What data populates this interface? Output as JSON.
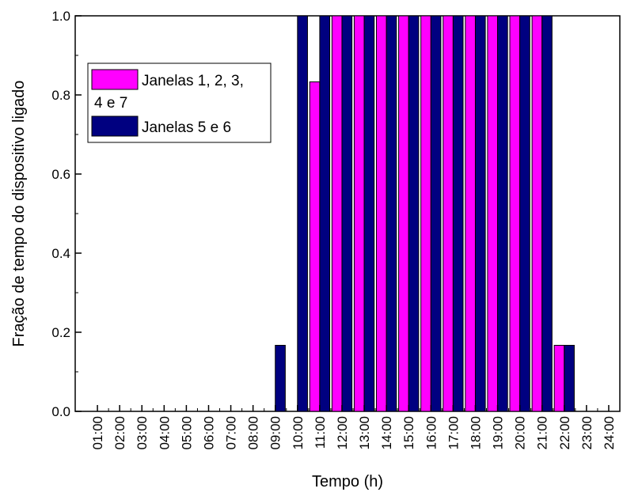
{
  "chart_data": {
    "type": "bar",
    "xlabel": "Tempo (h)",
    "ylabel": "Fração de tempo do dispositivo ligado",
    "ylim": [
      0.0,
      1.0
    ],
    "yticks": [
      "0.0",
      "0.2",
      "0.4",
      "0.6",
      "0.8",
      "1.0"
    ],
    "categories": [
      "01:00",
      "02:00",
      "03:00",
      "04:00",
      "05:00",
      "06:00",
      "07:00",
      "08:00",
      "09:00",
      "10:00",
      "11:00",
      "12:00",
      "13:00",
      "14:00",
      "15:00",
      "16:00",
      "17:00",
      "18:00",
      "19:00",
      "20:00",
      "21:00",
      "22:00",
      "23:00",
      "24:00"
    ],
    "series": [
      {
        "name": "Janelas 1, 2, 3, 4 e 7",
        "color": "#ff00ff",
        "values": [
          0,
          0,
          0,
          0,
          0,
          0,
          0,
          0,
          0,
          0,
          0.833,
          1.0,
          1.0,
          1.0,
          1.0,
          1.0,
          1.0,
          1.0,
          1.0,
          1.0,
          1.0,
          0.167,
          0,
          0
        ]
      },
      {
        "name": "Janelas 5 e 6",
        "color": "#000080",
        "values": [
          0,
          0,
          0,
          0,
          0,
          0,
          0,
          0,
          0.167,
          1.0,
          1.0,
          1.0,
          1.0,
          1.0,
          1.0,
          1.0,
          1.0,
          1.0,
          1.0,
          1.0,
          1.0,
          0.167,
          0,
          0
        ]
      }
    ],
    "legend": {
      "placement": "top-left",
      "entries": [
        {
          "lines": [
            "Janelas 1, 2, 3,",
            "4 e 7"
          ],
          "color": "#ff00ff"
        },
        {
          "lines": [
            "Janelas 5 e 6"
          ],
          "color": "#000080"
        }
      ]
    },
    "grid": false
  }
}
